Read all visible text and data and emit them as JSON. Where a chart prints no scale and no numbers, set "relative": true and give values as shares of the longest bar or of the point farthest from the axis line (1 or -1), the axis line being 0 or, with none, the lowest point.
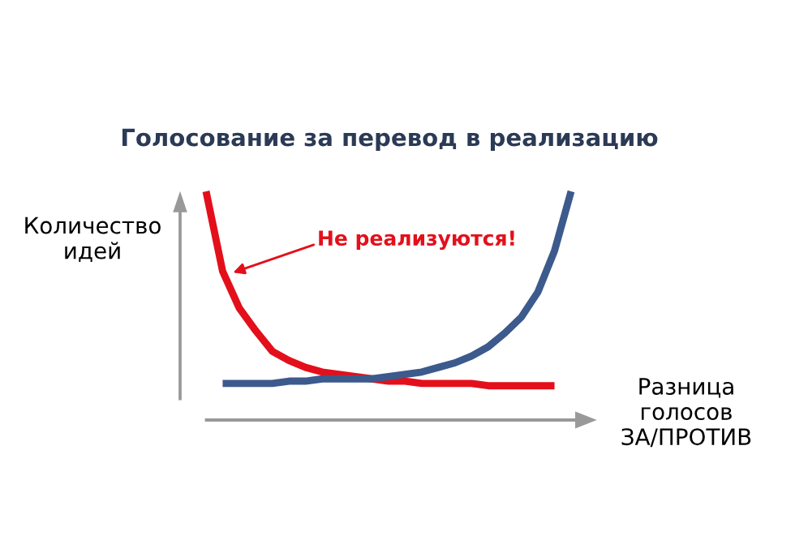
{
  "chart_data": {
    "type": "line",
    "relative": true,
    "title": "Голосование за перевод в реализацию",
    "xlabel": "Разница\nголосов\nЗА/ПРОТИВ",
    "ylabel": "Количество\nидей",
    "annotations": [
      "Не реализуются!"
    ],
    "categories": [
      null,
      null,
      null,
      null,
      null,
      null,
      null,
      null,
      null,
      null,
      null,
      null,
      null,
      null,
      null,
      null,
      null,
      null,
      null,
      null,
      null,
      null,
      null
    ],
    "series": [
      {
        "color": "#e3101b",
        "values": [
          1.0,
          0.65,
          0.49,
          0.39,
          0.3,
          0.26,
          0.23,
          0.21,
          0.2,
          0.19,
          0.18,
          0.17,
          0.17,
          0.16,
          0.16,
          0.16,
          0.16,
          0.15,
          0.15,
          0.15,
          0.15,
          0.15,
          null
        ]
      },
      {
        "color": "#3c5a8c",
        "values": [
          null,
          0.16,
          0.16,
          0.16,
          0.16,
          0.17,
          0.17,
          0.18,
          0.18,
          0.18,
          0.18,
          0.19,
          0.2,
          0.21,
          0.23,
          0.25,
          0.28,
          0.32,
          0.38,
          0.45,
          0.56,
          0.74,
          1.0
        ]
      }
    ],
    "grid": false,
    "legend": false,
    "marker": "none",
    "line_style": "solid"
  }
}
